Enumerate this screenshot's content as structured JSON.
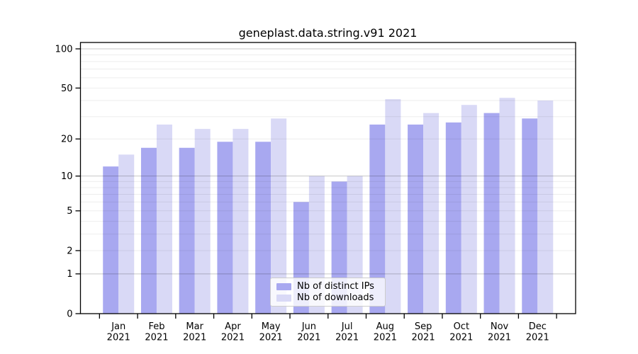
{
  "chart_data": {
    "type": "bar",
    "title": "geneplast.data.string.v91 2021",
    "scale": "log1p",
    "categories": [
      "Jan",
      "Feb",
      "Mar",
      "Apr",
      "May",
      "Jun",
      "Jul",
      "Aug",
      "Sep",
      "Oct",
      "Nov",
      "Dec"
    ],
    "year_label": "2021",
    "series": [
      {
        "name": "Nb of distinct IPs",
        "color": "#a8a8f0",
        "values": [
          12,
          17,
          17,
          19,
          19,
          6,
          9,
          26,
          26,
          27,
          32,
          29
        ]
      },
      {
        "name": "Nb of downloads",
        "color": "#d9d9f6",
        "values": [
          15,
          26,
          24,
          24,
          29,
          10,
          10,
          41,
          32,
          37,
          42,
          40
        ]
      }
    ],
    "yticks": [
      0,
      1,
      2,
      5,
      10,
      20,
      50,
      100
    ],
    "ylim": [
      0,
      114
    ],
    "xlabel": "",
    "ylabel": "",
    "grid": true,
    "legend_position": "lower center",
    "colors": {
      "spine": "#000000",
      "tick_label": "#000000",
      "major_grid": "rgba(0,0,0,0.22)",
      "minor_grid": "rgba(0,0,0,0.07)"
    }
  }
}
